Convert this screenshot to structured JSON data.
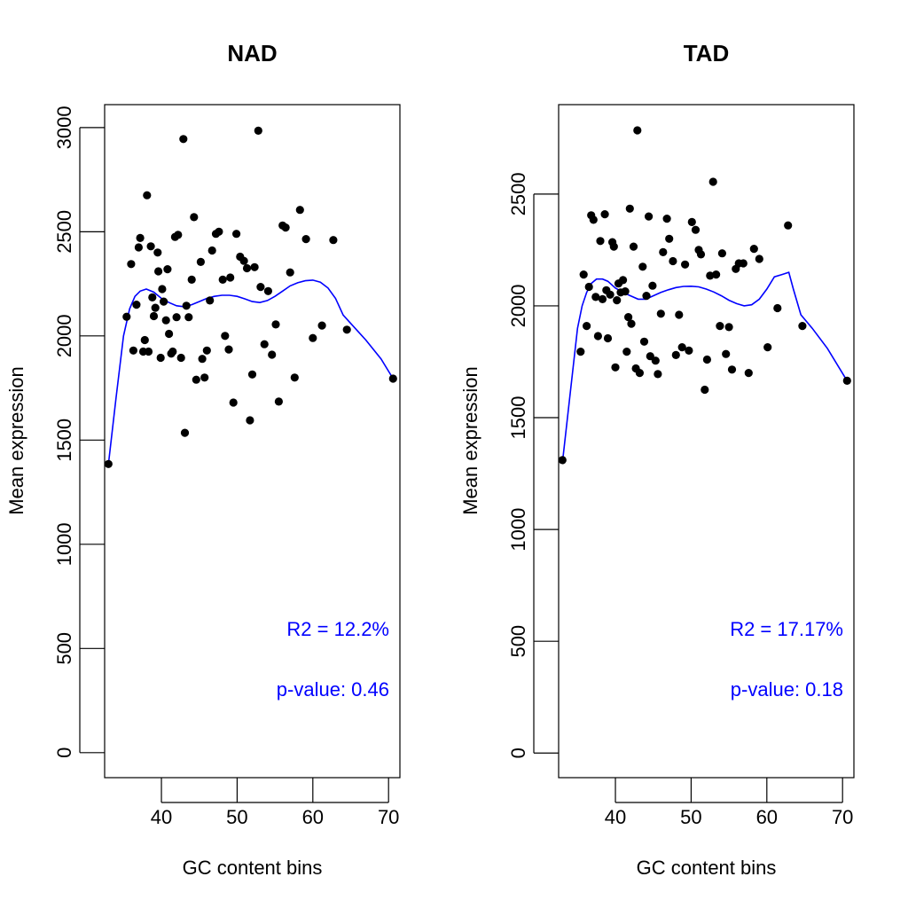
{
  "chart_data": [
    {
      "type": "scatter",
      "title": "NAD",
      "xlabel": "GC content bins",
      "ylabel": "Mean expression",
      "xlim": [
        32.5,
        71.5
      ],
      "ylim": [
        -120,
        3110
      ],
      "xticks": [
        40,
        50,
        60,
        70
      ],
      "yticks": [
        0,
        500,
        1000,
        1500,
        2000,
        2500,
        3000
      ],
      "grid": false,
      "annotations": [
        "R2 = 12.2%",
        "p-value: 0.46"
      ],
      "series": [
        {
          "marker": "point",
          "color": "#000000",
          "points": [
            [
              33.0,
              1385
            ],
            [
              35.4,
              2092
            ],
            [
              36.0,
              2345
            ],
            [
              36.3,
              1930
            ],
            [
              36.7,
              2150
            ],
            [
              37.0,
              2425
            ],
            [
              37.2,
              2470
            ],
            [
              37.6,
              1925
            ],
            [
              37.8,
              1980
            ],
            [
              38.1,
              2675
            ],
            [
              38.3,
              1925
            ],
            [
              38.6,
              2430
            ],
            [
              38.8,
              2185
            ],
            [
              39.0,
              2095
            ],
            [
              39.2,
              2135
            ],
            [
              39.5,
              2400
            ],
            [
              39.6,
              2310
            ],
            [
              39.9,
              1895
            ],
            [
              40.1,
              2225
            ],
            [
              40.3,
              2165
            ],
            [
              40.6,
              2075
            ],
            [
              40.8,
              2320
            ],
            [
              41.0,
              2010
            ],
            [
              41.3,
              1915
            ],
            [
              41.5,
              1925
            ],
            [
              41.8,
              2475
            ],
            [
              42.0,
              2090
            ],
            [
              42.2,
              2485
            ],
            [
              42.6,
              1895
            ],
            [
              42.9,
              2945
            ],
            [
              43.1,
              1535
            ],
            [
              43.3,
              2145
            ],
            [
              43.6,
              2090
            ],
            [
              44.0,
              2270
            ],
            [
              44.3,
              2570
            ],
            [
              44.6,
              1790
            ],
            [
              45.2,
              2355
            ],
            [
              45.4,
              1890
            ],
            [
              45.7,
              1800
            ],
            [
              46.0,
              1930
            ],
            [
              46.4,
              2170
            ],
            [
              46.7,
              2410
            ],
            [
              47.2,
              2490
            ],
            [
              47.6,
              2500
            ],
            [
              48.1,
              2270
            ],
            [
              48.4,
              2000
            ],
            [
              48.9,
              1935
            ],
            [
              49.1,
              2280
            ],
            [
              49.5,
              1680
            ],
            [
              49.9,
              2490
            ],
            [
              50.4,
              2380
            ],
            [
              50.9,
              2360
            ],
            [
              51.3,
              2325
            ],
            [
              51.7,
              1595
            ],
            [
              52.0,
              1815
            ],
            [
              52.3,
              2330
            ],
            [
              52.8,
              2985
            ],
            [
              53.1,
              2235
            ],
            [
              53.6,
              1960
            ],
            [
              54.1,
              2215
            ],
            [
              54.6,
              1910
            ],
            [
              55.1,
              2055
            ],
            [
              55.5,
              1685
            ],
            [
              56.0,
              2530
            ],
            [
              56.4,
              2520
            ],
            [
              57.0,
              2305
            ],
            [
              57.6,
              1800
            ],
            [
              58.3,
              2605
            ],
            [
              59.1,
              2465
            ],
            [
              60.0,
              1990
            ],
            [
              61.2,
              2050
            ],
            [
              62.7,
              2460
            ],
            [
              64.5,
              2030
            ],
            [
              70.6,
              1795
            ]
          ]
        },
        {
          "marker": "line",
          "color": "#0000ff",
          "points": [
            [
              33.0,
              1385
            ],
            [
              34.0,
              1700
            ],
            [
              35.0,
              2000
            ],
            [
              35.8,
              2130
            ],
            [
              36.5,
              2190
            ],
            [
              37.2,
              2215
            ],
            [
              38.0,
              2225
            ],
            [
              39.0,
              2210
            ],
            [
              40.0,
              2180
            ],
            [
              41.0,
              2160
            ],
            [
              42.0,
              2145
            ],
            [
              43.0,
              2140
            ],
            [
              44.0,
              2150
            ],
            [
              45.0,
              2165
            ],
            [
              46.0,
              2180
            ],
            [
              47.0,
              2190
            ],
            [
              48.0,
              2195
            ],
            [
              49.0,
              2195
            ],
            [
              50.0,
              2190
            ],
            [
              51.0,
              2178
            ],
            [
              52.0,
              2165
            ],
            [
              53.0,
              2160
            ],
            [
              54.0,
              2170
            ],
            [
              55.0,
              2190
            ],
            [
              56.0,
              2215
            ],
            [
              57.0,
              2240
            ],
            [
              58.0,
              2255
            ],
            [
              59.0,
              2265
            ],
            [
              60.0,
              2268
            ],
            [
              61.0,
              2258
            ],
            [
              62.0,
              2230
            ],
            [
              63.0,
              2180
            ],
            [
              64.0,
              2100
            ],
            [
              65.0,
              2060
            ],
            [
              67.0,
              1980
            ],
            [
              69.0,
              1890
            ],
            [
              70.6,
              1795
            ]
          ]
        }
      ]
    },
    {
      "type": "scatter",
      "title": "TAD",
      "xlabel": "GC content bins",
      "ylabel": "Mean expression",
      "xlim": [
        32.5,
        71.5
      ],
      "ylim": [
        -110,
        2900
      ],
      "xticks": [
        40,
        50,
        60,
        70
      ],
      "yticks": [
        0,
        500,
        1000,
        1500,
        2000,
        2500
      ],
      "grid": false,
      "annotations": [
        "R2 = 17.17%",
        "p-value: 0.18"
      ],
      "series": [
        {
          "marker": "point",
          "color": "#000000",
          "points": [
            [
              33.0,
              1310
            ],
            [
              35.4,
              1795
            ],
            [
              35.8,
              2140
            ],
            [
              36.2,
              1910
            ],
            [
              36.5,
              2085
            ],
            [
              36.8,
              2405
            ],
            [
              37.1,
              2385
            ],
            [
              37.4,
              2040
            ],
            [
              37.7,
              1865
            ],
            [
              38.0,
              2290
            ],
            [
              38.3,
              2030
            ],
            [
              38.6,
              2410
            ],
            [
              38.8,
              2070
            ],
            [
              39.0,
              1855
            ],
            [
              39.3,
              2050
            ],
            [
              39.6,
              2285
            ],
            [
              39.8,
              2265
            ],
            [
              40.0,
              1725
            ],
            [
              40.2,
              2025
            ],
            [
              40.4,
              2100
            ],
            [
              40.7,
              2060
            ],
            [
              41.0,
              2115
            ],
            [
              41.3,
              2065
            ],
            [
              41.5,
              1795
            ],
            [
              41.7,
              1950
            ],
            [
              41.9,
              2435
            ],
            [
              42.1,
              1920
            ],
            [
              42.4,
              2265
            ],
            [
              42.7,
              1720
            ],
            [
              42.9,
              2785
            ],
            [
              43.2,
              1700
            ],
            [
              43.6,
              2175
            ],
            [
              43.8,
              1840
            ],
            [
              44.1,
              2045
            ],
            [
              44.4,
              2400
            ],
            [
              44.6,
              1775
            ],
            [
              44.9,
              2090
            ],
            [
              45.3,
              1755
            ],
            [
              45.6,
              1695
            ],
            [
              46.0,
              1965
            ],
            [
              46.3,
              2240
            ],
            [
              46.8,
              2390
            ],
            [
              47.1,
              2300
            ],
            [
              47.6,
              2200
            ],
            [
              48.0,
              1780
            ],
            [
              48.4,
              1960
            ],
            [
              48.8,
              1815
            ],
            [
              49.2,
              2185
            ],
            [
              49.7,
              1800
            ],
            [
              50.1,
              2375
            ],
            [
              50.6,
              2340
            ],
            [
              51.0,
              2250
            ],
            [
              51.3,
              2230
            ],
            [
              51.8,
              1625
            ],
            [
              52.1,
              1760
            ],
            [
              52.5,
              2135
            ],
            [
              52.9,
              2555
            ],
            [
              53.3,
              2140
            ],
            [
              53.8,
              1910
            ],
            [
              54.1,
              2235
            ],
            [
              54.6,
              1785
            ],
            [
              55.0,
              1905
            ],
            [
              55.4,
              1715
            ],
            [
              55.9,
              2165
            ],
            [
              56.3,
              2190
            ],
            [
              56.9,
              2190
            ],
            [
              57.6,
              1700
            ],
            [
              58.3,
              2255
            ],
            [
              59.0,
              2210
            ],
            [
              60.1,
              1815
            ],
            [
              61.4,
              1990
            ],
            [
              62.8,
              2360
            ],
            [
              64.7,
              1910
            ],
            [
              70.6,
              1665
            ]
          ]
        },
        {
          "marker": "line",
          "color": "#0000ff",
          "points": [
            [
              33.0,
              1300
            ],
            [
              34.0,
              1600
            ],
            [
              35.0,
              1900
            ],
            [
              35.6,
              2000
            ],
            [
              36.2,
              2060
            ],
            [
              36.8,
              2100
            ],
            [
              37.5,
              2120
            ],
            [
              38.3,
              2120
            ],
            [
              39.0,
              2110
            ],
            [
              40.0,
              2080
            ],
            [
              41.0,
              2060
            ],
            [
              42.0,
              2045
            ],
            [
              43.0,
              2030
            ],
            [
              44.0,
              2030
            ],
            [
              45.0,
              2045
            ],
            [
              46.0,
              2060
            ],
            [
              47.0,
              2072
            ],
            [
              48.0,
              2082
            ],
            [
              49.0,
              2087
            ],
            [
              50.0,
              2088
            ],
            [
              51.0,
              2085
            ],
            [
              52.0,
              2075
            ],
            [
              53.0,
              2062
            ],
            [
              54.0,
              2045
            ],
            [
              55.0,
              2025
            ],
            [
              56.0,
              2010
            ],
            [
              57.0,
              2000
            ],
            [
              58.0,
              2005
            ],
            [
              59.0,
              2030
            ],
            [
              60.0,
              2075
            ],
            [
              61.0,
              2130
            ],
            [
              62.0,
              2140
            ],
            [
              62.9,
              2150
            ],
            [
              63.5,
              2075
            ],
            [
              64.5,
              1960
            ],
            [
              66.0,
              1900
            ],
            [
              68.0,
              1810
            ],
            [
              70.6,
              1665
            ]
          ]
        }
      ]
    }
  ]
}
